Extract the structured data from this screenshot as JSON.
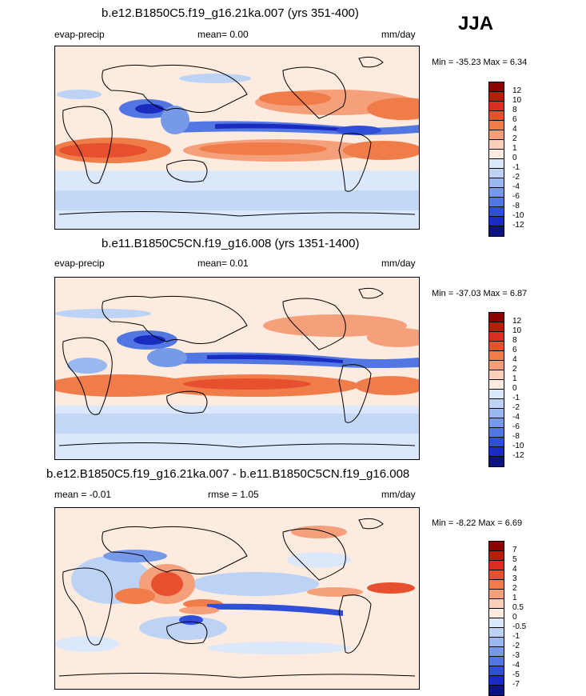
{
  "season": "JJA",
  "panels": [
    {
      "title": "b.e12.B1850C5.f19_g16.21ka.007 (yrs 351-400)",
      "left_label": "evap-precip",
      "mid_label": "mean=  0.00",
      "mid2_label": "",
      "units": "mm/day",
      "minmax": "Min = -35.23 Max =   6.34",
      "legend_levels": [
        "12",
        "10",
        "8",
        "6",
        "4",
        "2",
        "1",
        "0",
        "-1",
        "-2",
        "-4",
        "-6",
        "-8",
        "-10",
        "-12"
      ],
      "legend_colors": [
        "#8b0000",
        "#b81d08",
        "#d7301f",
        "#e6502e",
        "#f07c4a",
        "#f5a07a",
        "#fbd0b9",
        "#fdebdf",
        "#dbe8fb",
        "#bcd3f5",
        "#98b8ef",
        "#7699e8",
        "#5277e3",
        "#2f4fd9",
        "#1a2cbf",
        "#0b1380"
      ]
    },
    {
      "title": "b.e11.B1850C5CN.f19_g16.008 (yrs 1351-1400)",
      "left_label": "evap-precip",
      "mid_label": "mean=  0.01",
      "mid2_label": "",
      "units": "mm/day",
      "minmax": "Min = -37.03 Max =   6.87",
      "legend_levels": [
        "12",
        "10",
        "8",
        "6",
        "4",
        "2",
        "1",
        "0",
        "-1",
        "-2",
        "-4",
        "-6",
        "-8",
        "-10",
        "-12"
      ],
      "legend_colors": [
        "#8b0000",
        "#b81d08",
        "#d7301f",
        "#e6502e",
        "#f07c4a",
        "#f5a07a",
        "#fbd0b9",
        "#fdebdf",
        "#dbe8fb",
        "#bcd3f5",
        "#98b8ef",
        "#7699e8",
        "#5277e3",
        "#2f4fd9",
        "#1a2cbf",
        "#0b1380"
      ]
    },
    {
      "title": "b.e12.B1850C5.f19_g16.21ka.007 - b.e11.B1850C5CN.f19_g16.008",
      "left_label": "mean =  -0.01",
      "mid_label": "",
      "mid2_label": "rmse =  1.05",
      "units": "mm/day",
      "minmax": "Min =  -8.22 Max =   6.69",
      "legend_levels": [
        "7",
        "5",
        "4",
        "3",
        "2",
        "1",
        "0.5",
        "0",
        "-0.5",
        "-1",
        "-2",
        "-3",
        "-4",
        "-5",
        "-7"
      ],
      "legend_colors": [
        "#8b0000",
        "#b81d08",
        "#d7301f",
        "#e6502e",
        "#f07c4a",
        "#f5a07a",
        "#fbd0b9",
        "#fdebdf",
        "#dbe8fb",
        "#bcd3f5",
        "#98b8ef",
        "#7699e8",
        "#5277e3",
        "#2f4fd9",
        "#1a2cbf",
        "#0b1380"
      ]
    }
  ]
}
